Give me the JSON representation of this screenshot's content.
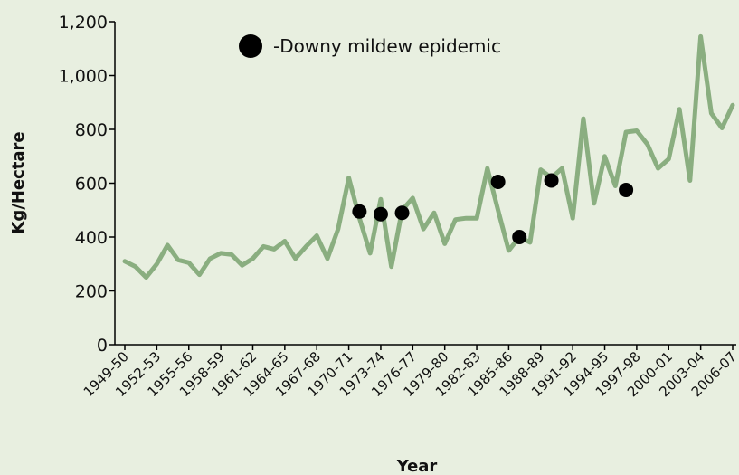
{
  "chart_data": {
    "type": "line",
    "xlabel": "Year",
    "ylabel": "Kg/Hectare",
    "ylim": [
      0,
      1200
    ],
    "yticks": [
      "0",
      "200",
      "400",
      "600",
      "800",
      "1,000",
      "1,200"
    ],
    "ytick_values": [
      0,
      200,
      400,
      600,
      800,
      1000,
      1200
    ],
    "xtick_labels": [
      "1949-50",
      "1952-53",
      "1955-56",
      "1958-59",
      "1961-62",
      "1964-65",
      "1967-68",
      "1970-71",
      "1973-74",
      "1976-77",
      "1979-80",
      "1982-83",
      "1985-86",
      "1988-89",
      "1991-92",
      "1994-95",
      "1997-98",
      "2000-01",
      "2003-04",
      "2006-07"
    ],
    "series": [
      {
        "color": "#8aae80",
        "x": [
          "1949-50",
          "1950-51",
          "1951-52",
          "1952-53",
          "1953-54",
          "1954-55",
          "1955-56",
          "1956-57",
          "1957-58",
          "1958-59",
          "1959-60",
          "1960-61",
          "1961-62",
          "1962-63",
          "1963-64",
          "1964-65",
          "1965-66",
          "1966-67",
          "1967-68",
          "1968-69",
          "1969-70",
          "1970-71",
          "1971-72",
          "1972-73",
          "1973-74",
          "1974-75",
          "1975-76",
          "1976-77",
          "1977-78",
          "1978-79",
          "1979-80",
          "1980-81",
          "1981-82",
          "1982-83",
          "1983-84",
          "1984-85",
          "1985-86",
          "1986-87",
          "1987-88",
          "1988-89",
          "1989-90",
          "1990-91",
          "1991-92",
          "1992-93",
          "1993-94",
          "1994-95",
          "1995-96",
          "1996-97",
          "1997-98",
          "1998-99",
          "1999-2000",
          "2000-01",
          "2001-02",
          "2002-03",
          "2003-04",
          "2004-05",
          "2005-06",
          "2006-07"
        ],
        "values": [
          310,
          290,
          250,
          300,
          370,
          315,
          305,
          260,
          320,
          340,
          335,
          295,
          320,
          365,
          355,
          385,
          320,
          365,
          405,
          320,
          430,
          620,
          470,
          340,
          540,
          290,
          500,
          545,
          430,
          490,
          375,
          465,
          470,
          470,
          655,
          500,
          350,
          400,
          380,
          650,
          620,
          655,
          470,
          840,
          525,
          700,
          590,
          790,
          795,
          745,
          655,
          690,
          875,
          610,
          1145,
          860,
          805,
          890
        ]
      }
    ],
    "epidemic_points": [
      {
        "x": "1971-72",
        "y": 495
      },
      {
        "x": "1973-74",
        "y": 485
      },
      {
        "x": "1975-76",
        "y": 490
      },
      {
        "x": "1984-85",
        "y": 605
      },
      {
        "x": "1986-87",
        "y": 400
      },
      {
        "x": "1989-90",
        "y": 610
      },
      {
        "x": "1996-97",
        "y": 575
      }
    ],
    "legend": {
      "label": "-Downy mildew epidemic",
      "placement": "top-center"
    },
    "grid": false
  }
}
